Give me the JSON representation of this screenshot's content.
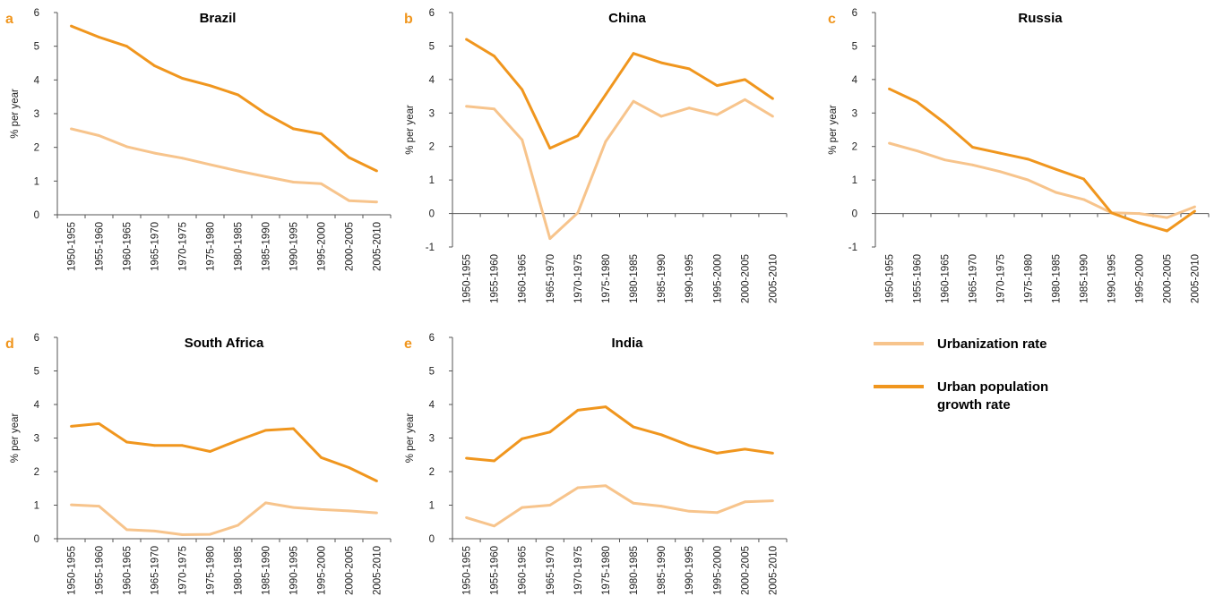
{
  "colors": {
    "urbanization": "#F7C48C",
    "urban_growth": "#F0961E",
    "letter": "#F0961E",
    "axis": "#555555"
  },
  "legend": {
    "items": [
      {
        "key": "urbanization",
        "lines": [
          "Urbanization rate"
        ]
      },
      {
        "key": "urban_growth",
        "lines": [
          "Urban population",
          "growth rate"
        ]
      }
    ]
  },
  "chart_data": [
    {
      "type": "line",
      "letter": "a",
      "title": "Brazil",
      "ylabel": "% per year",
      "ylim": [
        0,
        6
      ],
      "yticks": [
        0,
        1,
        2,
        3,
        4,
        5,
        6
      ],
      "categories": [
        "1950-1955",
        "1955-1960",
        "1960-1965",
        "1965-1970",
        "1970-1975",
        "1975-1980",
        "1980-1985",
        "1985-1990",
        "1990-1995",
        "1995-2000",
        "2000-2005",
        "2005-2010"
      ],
      "series": [
        {
          "key": "urbanization",
          "name": "Urbanization rate",
          "values": [
            2.55,
            2.35,
            2.02,
            1.83,
            1.68,
            1.49,
            1.3,
            1.13,
            0.97,
            0.92,
            0.42,
            0.38
          ]
        },
        {
          "key": "urban_growth",
          "name": "Urban population growth rate",
          "values": [
            5.6,
            5.27,
            5.0,
            4.42,
            4.05,
            3.83,
            3.56,
            3.0,
            2.55,
            2.4,
            1.7,
            1.3
          ]
        }
      ]
    },
    {
      "type": "line",
      "letter": "b",
      "title": "China",
      "ylabel": "% per year",
      "ylim": [
        -1,
        6
      ],
      "yticks": [
        -1,
        0,
        1,
        2,
        3,
        4,
        5,
        6
      ],
      "categories": [
        "1950-1955",
        "1955-1960",
        "1960-1965",
        "1965-1970",
        "1970-1975",
        "1975-1980",
        "1980-1985",
        "1985-1990",
        "1990-1995",
        "1995-2000",
        "2000-2005",
        "2005-2010"
      ],
      "series": [
        {
          "key": "urbanization",
          "name": "Urbanization rate",
          "values": [
            3.2,
            3.12,
            2.2,
            -0.75,
            0.02,
            2.15,
            3.35,
            2.9,
            3.15,
            2.95,
            3.4,
            2.9
          ]
        },
        {
          "key": "urban_growth",
          "name": "Urban population growth rate",
          "values": [
            5.2,
            4.7,
            3.7,
            1.95,
            2.32,
            3.55,
            4.78,
            4.5,
            4.32,
            3.82,
            4.0,
            3.43
          ]
        }
      ]
    },
    {
      "type": "line",
      "letter": "c",
      "title": "Russia",
      "ylabel": "% per year",
      "ylim": [
        -1,
        6
      ],
      "yticks": [
        -1,
        0,
        1,
        2,
        3,
        4,
        5,
        6
      ],
      "categories": [
        "1950-1955",
        "1955-1960",
        "1960-1965",
        "1965-1970",
        "1970-1975",
        "1975-1980",
        "1980-1985",
        "1985-1990",
        "1990-1995",
        "1995-2000",
        "2000-2005",
        "2005-2010"
      ],
      "series": [
        {
          "key": "urbanization",
          "name": "Urbanization rate",
          "values": [
            2.1,
            1.87,
            1.6,
            1.45,
            1.25,
            1.0,
            0.63,
            0.42,
            0.02,
            0.0,
            -0.12,
            0.2
          ]
        },
        {
          "key": "urban_growth",
          "name": "Urban population growth rate",
          "values": [
            3.72,
            3.33,
            2.7,
            1.98,
            1.8,
            1.62,
            1.32,
            1.03,
            0.02,
            -0.28,
            -0.52,
            0.07
          ]
        }
      ]
    },
    {
      "type": "line",
      "letter": "d",
      "title": "South Africa",
      "ylabel": "% per year",
      "ylim": [
        0,
        6
      ],
      "yticks": [
        0,
        1,
        2,
        3,
        4,
        5,
        6
      ],
      "categories": [
        "1950-1955",
        "1955-1960",
        "1960-1965",
        "1965-1970",
        "1970-1975",
        "1975-1980",
        "1980-1985",
        "1985-1990",
        "1990-1995",
        "1995-2000",
        "2000-2005",
        "2005-2010"
      ],
      "series": [
        {
          "key": "urbanization",
          "name": "Urbanization rate",
          "values": [
            1.01,
            0.97,
            0.27,
            0.23,
            0.12,
            0.13,
            0.4,
            1.07,
            0.93,
            0.87,
            0.83,
            0.77
          ]
        },
        {
          "key": "urban_growth",
          "name": "Urban population growth rate",
          "values": [
            3.35,
            3.43,
            2.88,
            2.78,
            2.78,
            2.6,
            2.93,
            3.23,
            3.28,
            2.42,
            2.12,
            1.72
          ]
        }
      ]
    },
    {
      "type": "line",
      "letter": "e",
      "title": "India",
      "ylabel": "% per year",
      "ylim": [
        0,
        6
      ],
      "yticks": [
        0,
        1,
        2,
        3,
        4,
        5,
        6
      ],
      "categories": [
        "1950-1955",
        "1955-1960",
        "1960-1965",
        "1965-1970",
        "1970-1975",
        "1975-1980",
        "1980-1985",
        "1985-1990",
        "1990-1995",
        "1995-2000",
        "2000-2005",
        "2005-2010"
      ],
      "series": [
        {
          "key": "urbanization",
          "name": "Urbanization rate",
          "values": [
            0.63,
            0.38,
            0.93,
            1.0,
            1.52,
            1.58,
            1.06,
            0.97,
            0.82,
            0.78,
            1.1,
            1.13
          ]
        },
        {
          "key": "urban_growth",
          "name": "Urban population growth rate",
          "values": [
            2.4,
            2.32,
            2.98,
            3.18,
            3.83,
            3.93,
            3.33,
            3.1,
            2.78,
            2.55,
            2.67,
            2.55
          ]
        }
      ]
    }
  ]
}
